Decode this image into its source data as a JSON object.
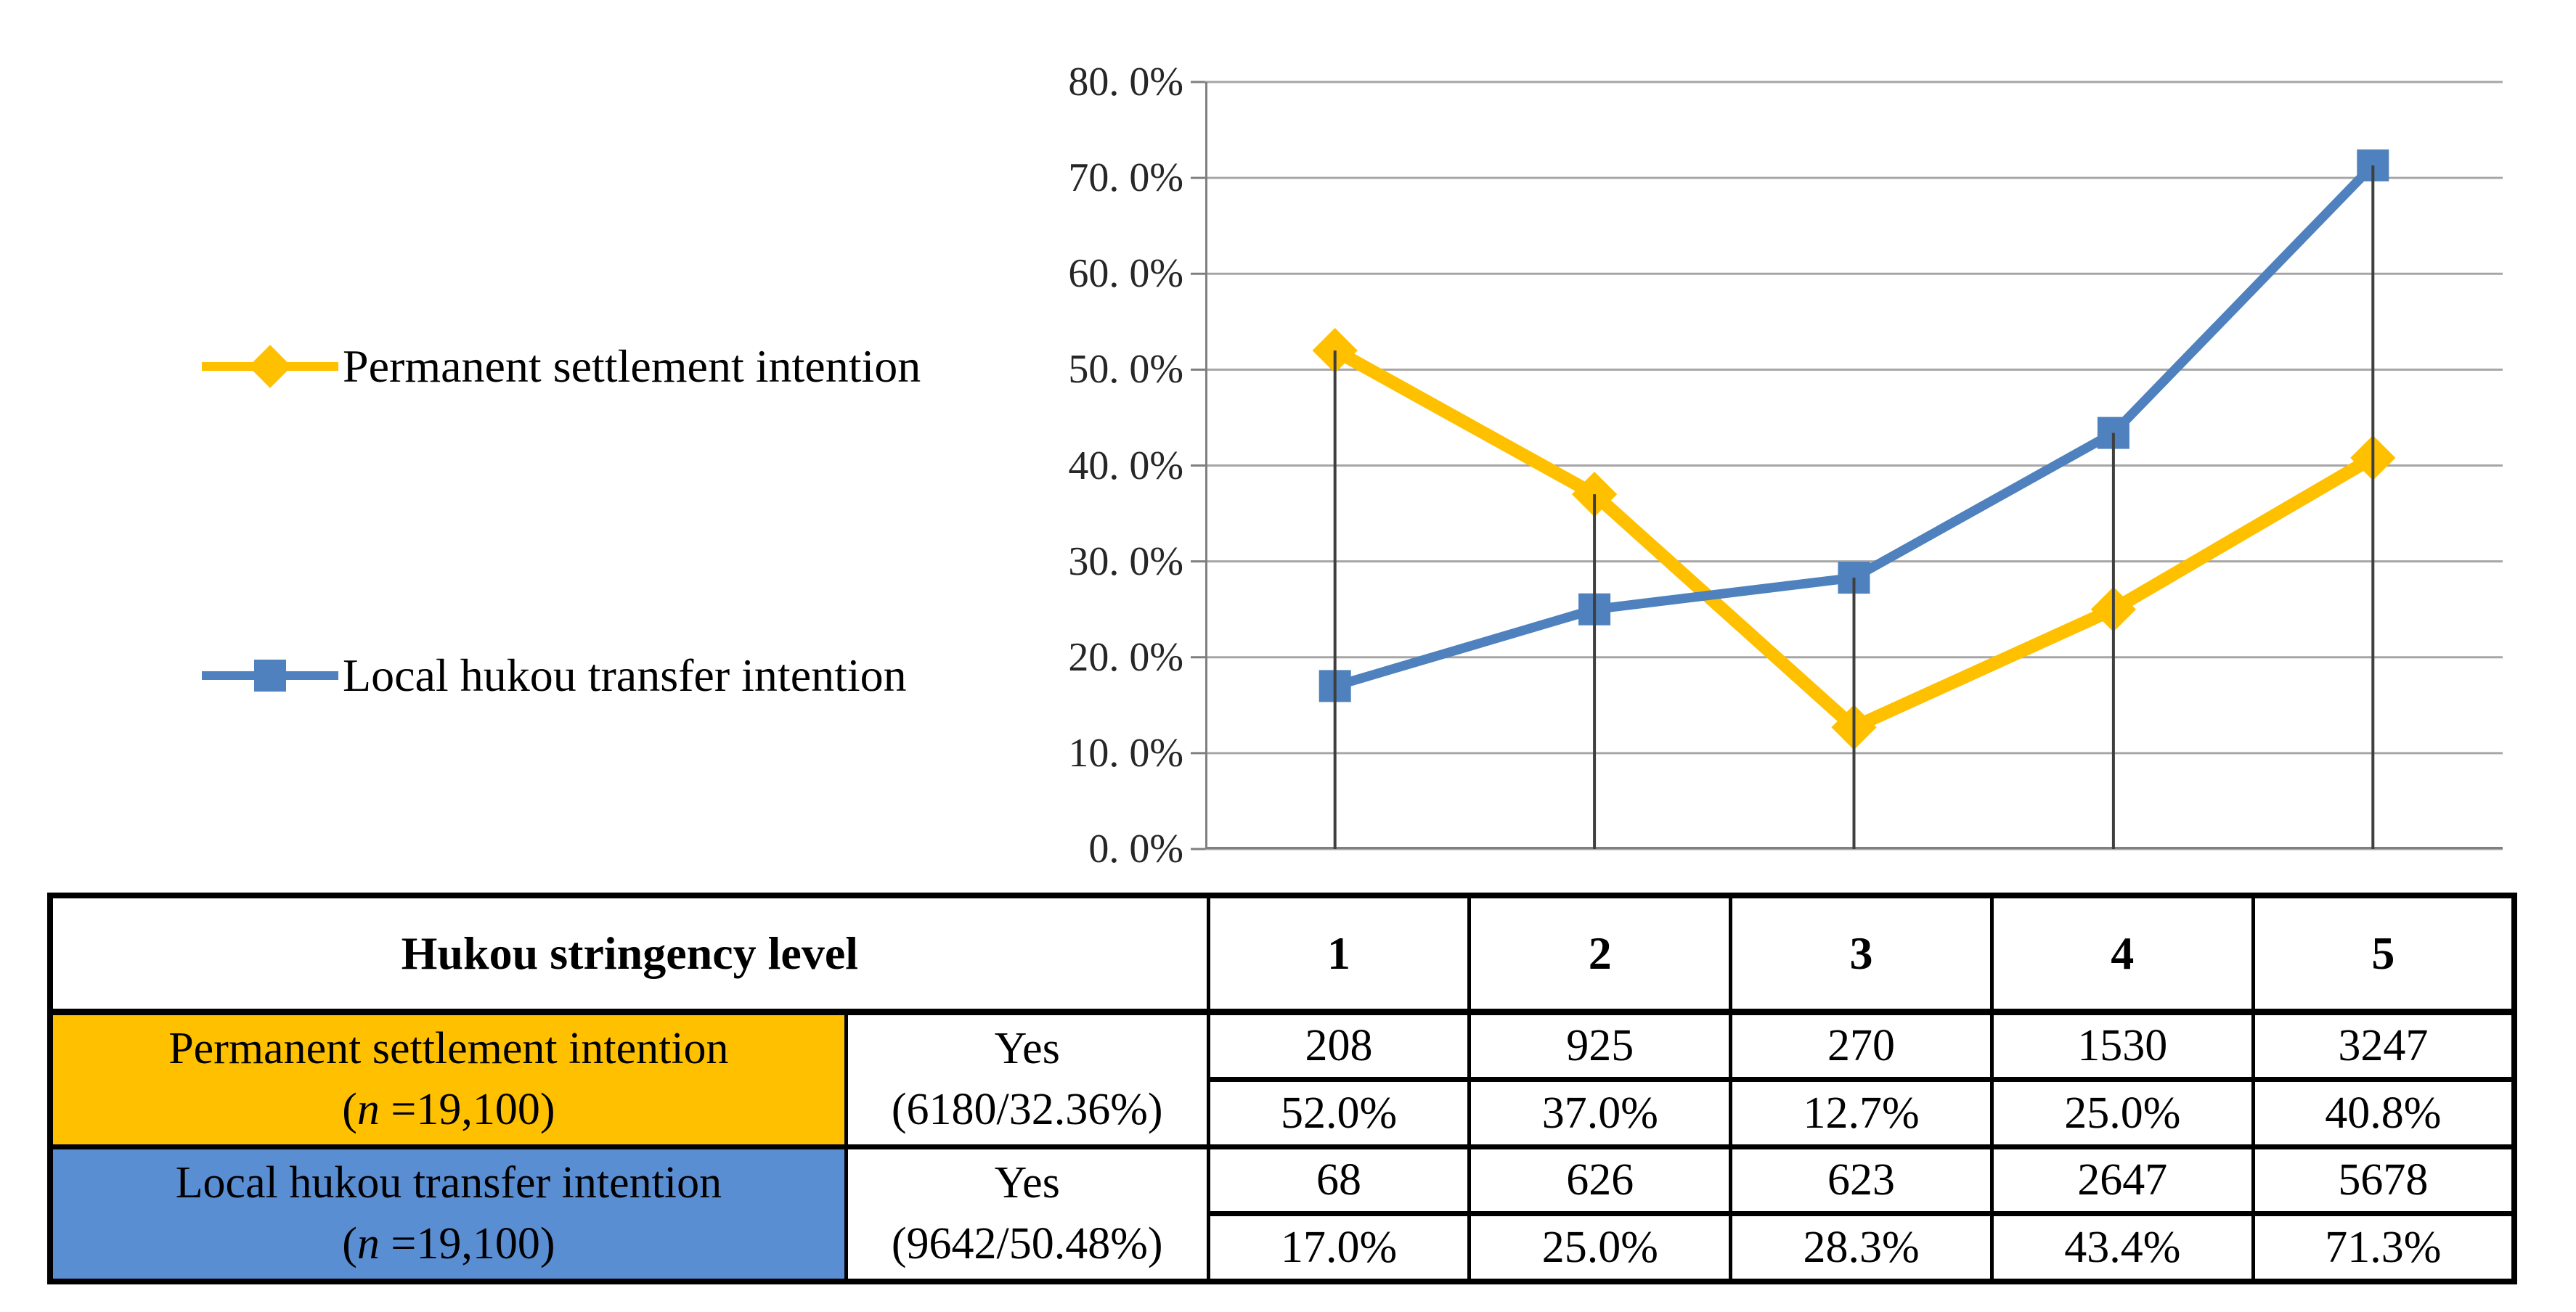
{
  "colors": {
    "series_yellow": "#FFC000",
    "series_blue": "#4E81BD",
    "table_yellow_bg": "#FFC000",
    "table_blue_bg": "#5A8ED3",
    "grid": "#A6A6A6",
    "axis": "#7F7F7F",
    "drop_line": "#3F3F3F"
  },
  "chart_data": {
    "type": "line",
    "categories": [
      "1",
      "2",
      "3",
      "4",
      "5"
    ],
    "x_axis_label": "Hukou stringency level",
    "series": [
      {
        "name": "Permanent settlement intention",
        "color": "#FFC000",
        "marker": "diamond",
        "marker_size": 44,
        "stroke_width": 18,
        "values": [
          52.0,
          37.0,
          12.7,
          25.0,
          40.8
        ]
      },
      {
        "name": "Local hukou transfer intention",
        "color": "#4E81BD",
        "marker": "square",
        "marker_size": 44,
        "stroke_width": 13,
        "values": [
          17.0,
          25.0,
          28.3,
          43.4,
          71.3
        ]
      }
    ],
    "ylim": [
      0,
      80
    ],
    "y_tick_step": 10,
    "y_tick_labels": [
      "80. 0%",
      "70. 0%",
      "60. 0%",
      "50. 0%",
      "40. 0%",
      "30. 0%",
      "20. 0%",
      "10. 0%",
      "0. 0%"
    ],
    "grid": true,
    "drop_lines": true,
    "legend_position": "left"
  },
  "table": {
    "header": {
      "label": "Hukou stringency level",
      "levels": [
        "1",
        "2",
        "3",
        "4",
        "5"
      ]
    },
    "rows": [
      {
        "name": "Permanent settlement intention",
        "sub_open": "(",
        "sub_n": "n",
        "sub_rest": " =19,100)",
        "yes_label": "Yes",
        "yes_detail": "(6180/32.36%)",
        "counts": [
          "208",
          "925",
          "270",
          "1530",
          "3247"
        ],
        "percents": [
          "52.0%",
          "37.0%",
          "12.7%",
          "25.0%",
          "40.8%"
        ]
      },
      {
        "name": "Local hukou transfer intention",
        "sub_open": "(",
        "sub_n": "n",
        "sub_rest": " =19,100)",
        "yes_label": "Yes",
        "yes_detail": "(9642/50.48%)",
        "counts": [
          "68",
          "626",
          "623",
          "2647",
          "5678"
        ],
        "percents": [
          "17.0%",
          "25.0%",
          "28.3%",
          "43.4%",
          "71.3%"
        ]
      }
    ]
  }
}
